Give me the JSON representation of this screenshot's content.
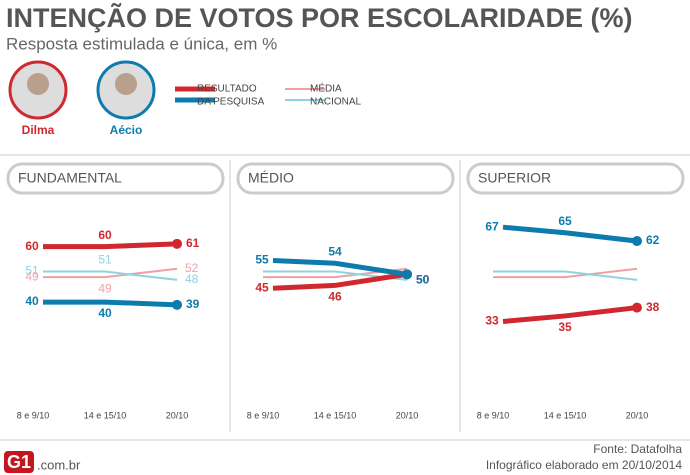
{
  "header": {
    "title": "INTENÇÃO DE VOTOS POR ESCOLARIDADE (%)",
    "subtitle": "Resposta estimulada e única, em %"
  },
  "candidates": [
    {
      "name": "Dilma",
      "color": "#d0282e"
    },
    {
      "name": "Aécio",
      "color": "#0e7bae"
    }
  ],
  "legend": [
    {
      "label": [
        "RESULTADO",
        "DA PESQUISA"
      ],
      "colors": [
        "#d0282e",
        "#0e7bae"
      ]
    },
    {
      "label": [
        "MÉDIA",
        "NACIONAL"
      ],
      "colors": [
        "#f0a0a4",
        "#8fd3de"
      ]
    }
  ],
  "chart_data": [
    {
      "type": "line",
      "title": "FUNDAMENTAL",
      "categories": [
        "8 e 9/10",
        "14 e 15/10",
        "20/10"
      ],
      "ylim": [
        0,
        75
      ],
      "series": [
        {
          "color": "#f0a0a4",
          "values": [
            49,
            49,
            52
          ],
          "labels": true
        },
        {
          "color": "#8fd3de",
          "values": [
            51,
            51,
            48
          ],
          "labels": true
        },
        {
          "name": "Dilma",
          "color": "#d0282e",
          "values": [
            60,
            60,
            61
          ],
          "labels": true
        },
        {
          "name": "Aécio",
          "color": "#0e7bae",
          "values": [
            40,
            40,
            39
          ],
          "labels": true
        }
      ]
    },
    {
      "type": "line",
      "title": "MÉDIO",
      "categories": [
        "8 e 9/10",
        "14 e 15/10",
        "20/10"
      ],
      "ylim": [
        0,
        75
      ],
      "series": [
        {
          "color": "#f0a0a4",
          "values": [
            49,
            49,
            52
          ],
          "labels": false
        },
        {
          "color": "#8fd3de",
          "values": [
            51,
            51,
            48
          ],
          "labels": false
        },
        {
          "name": "Dilma",
          "color": "#d0282e",
          "values": [
            45,
            46,
            50
          ],
          "labels": true
        },
        {
          "name": "Aécio",
          "color": "#0e7bae",
          "values": [
            55,
            54,
            50
          ],
          "labels": true
        }
      ]
    },
    {
      "type": "line",
      "title": "SUPERIOR",
      "categories": [
        "8 e 9/10",
        "14 e 15/10",
        "20/10"
      ],
      "ylim": [
        0,
        75
      ],
      "series": [
        {
          "color": "#f0a0a4",
          "values": [
            49,
            49,
            52
          ],
          "labels": false
        },
        {
          "color": "#8fd3de",
          "values": [
            51,
            51,
            48
          ],
          "labels": false
        },
        {
          "name": "Dilma",
          "color": "#d0282e",
          "values": [
            33,
            35,
            38
          ],
          "labels": true
        },
        {
          "name": "Aécio",
          "color": "#0e7bae",
          "values": [
            67,
            65,
            62
          ],
          "labels": true
        }
      ]
    }
  ],
  "footer": {
    "logo": "G1",
    "domain": ".com.br",
    "source": "Fonte: Datafolha",
    "credit": "Infográfico elaborado em 20/10/2014"
  }
}
